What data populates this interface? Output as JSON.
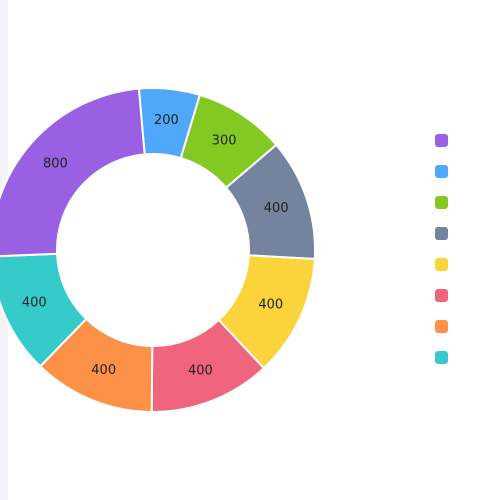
{
  "chart_data": {
    "type": "pie",
    "variant": "donut",
    "legend_position": "right",
    "slices": [
      {
        "name": "",
        "value": 200,
        "label": "200",
        "color": "#4fa8f9"
      },
      {
        "name": "",
        "value": 300,
        "label": "300",
        "color": "#84c822"
      },
      {
        "name": "",
        "value": 400,
        "label": "400",
        "color": "#74849f"
      },
      {
        "name": "",
        "value": 400,
        "label": "400",
        "color": "#fad43a"
      },
      {
        "name": "",
        "value": 400,
        "label": "400",
        "color": "#f0657d"
      },
      {
        "name": "",
        "value": 400,
        "label": "400",
        "color": "#fd9147"
      },
      {
        "name": "",
        "value": 400,
        "label": "400",
        "color": "#36cbcb"
      },
      {
        "name": "",
        "value": 800,
        "label": "800",
        "color": "#9a60e4"
      }
    ],
    "legend_order": [
      7,
      0,
      1,
      2,
      3,
      4,
      5,
      6
    ]
  }
}
